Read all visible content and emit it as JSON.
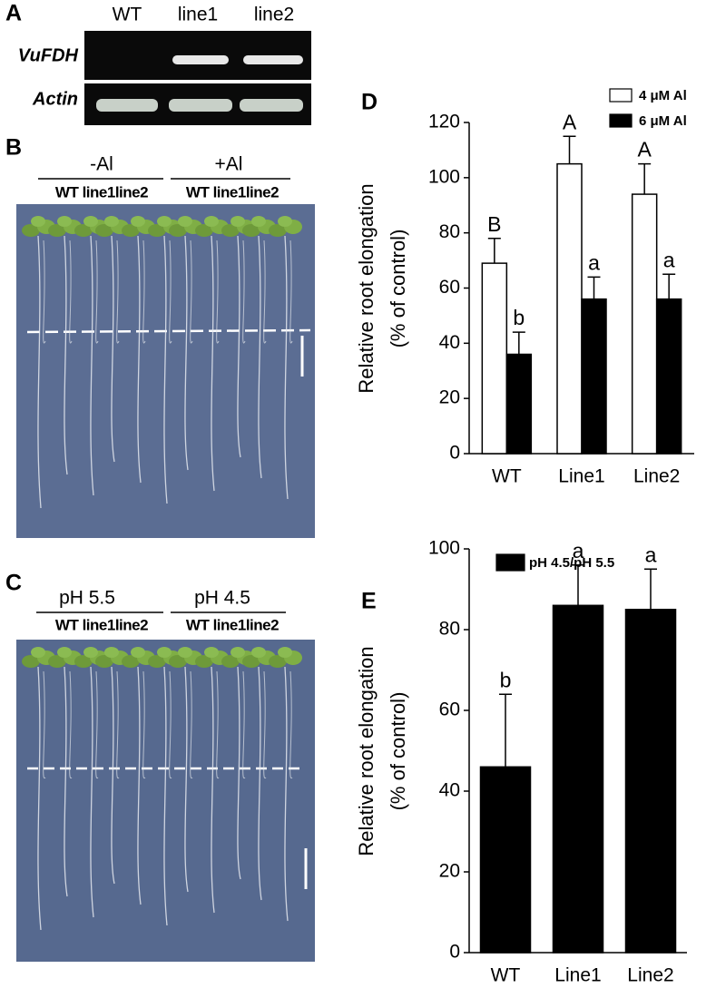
{
  "panels": {
    "a": {
      "letter": "A",
      "lanes": [
        "WT",
        "line1",
        "line2"
      ],
      "rows": [
        "VuFDH",
        "Actin"
      ]
    },
    "b": {
      "letter": "B",
      "groups": [
        "-Al",
        "+Al"
      ],
      "lanes": [
        "WT line1line2",
        "WT line1line2"
      ]
    },
    "c": {
      "letter": "C",
      "groups": [
        "pH 5.5",
        "pH 4.5"
      ],
      "lanes": [
        "WT line1line2",
        "WT line1line2"
      ]
    },
    "d": {
      "letter": "D"
    },
    "e": {
      "letter": "E"
    }
  },
  "chart_data": [
    {
      "type": "bar",
      "categories": [
        "WT",
        "Line1",
        "Line2"
      ],
      "series": [
        {
          "name": "4 μM Al",
          "color": "#ffffff",
          "values": [
            69,
            105,
            94
          ],
          "errors": [
            9,
            10,
            11
          ],
          "annotations": [
            "B",
            "A",
            "A"
          ]
        },
        {
          "name": "6 μM Al",
          "color": "#000000",
          "values": [
            36,
            56,
            56
          ],
          "errors": [
            8,
            8,
            9
          ],
          "annotations": [
            "b",
            "a",
            "a"
          ]
        }
      ],
      "ylabel": [
        "Relative root elongation",
        "(% of control)"
      ],
      "ylim": [
        0,
        120
      ],
      "yticks": [
        0,
        20,
        40,
        60,
        80,
        100,
        120
      ]
    },
    {
      "type": "bar",
      "categories": [
        "WT",
        "Line1",
        "Line2"
      ],
      "series": [
        {
          "name": "pH 4.5/pH 5.5",
          "color": "#000000",
          "values": [
            46,
            86,
            85
          ],
          "errors": [
            18,
            10,
            10
          ],
          "annotations": [
            "b",
            "a",
            "a"
          ]
        }
      ],
      "ylabel": [
        "Relative root elongation",
        "(% of control)"
      ],
      "ylim": [
        0,
        100
      ],
      "yticks": [
        0,
        20,
        40,
        60,
        80,
        100
      ]
    }
  ]
}
